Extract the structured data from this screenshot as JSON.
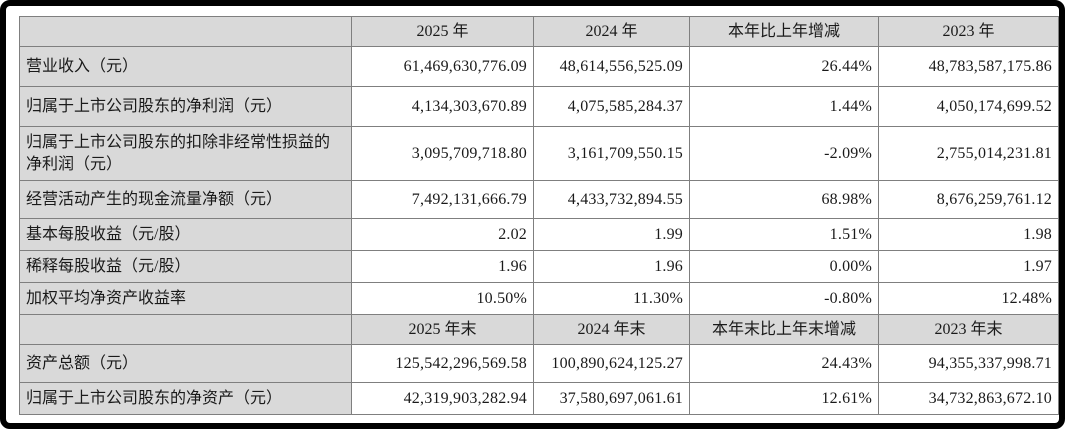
{
  "colors": {
    "frame": "#000000",
    "header_bg": "#d9d9d9",
    "label_bg": "#d9d9d9",
    "cell_bg": "#ffffff",
    "border": "#7f7f7f",
    "text": "#1a1a1a"
  },
  "table": {
    "header_row_1": {
      "col_2025": "2025 年",
      "col_2024": "2024 年",
      "col_change": "本年比上年增减",
      "col_2023": "2023 年"
    },
    "header_row_2": {
      "col_2025": "2025 年末",
      "col_2024": "2024 年末",
      "col_change": "本年末比上年末增减",
      "col_2023": "2023 年末"
    },
    "rows": [
      {
        "label": "营业收入（元）",
        "v2025": "61,469,630,776.09",
        "v2024": "48,614,556,525.09",
        "change": "26.44%",
        "v2023": "48,783,587,175.86"
      },
      {
        "label": "归属于上市公司股东的净利润（元）",
        "v2025": "4,134,303,670.89",
        "v2024": "4,075,585,284.37",
        "change": "1.44%",
        "v2023": "4,050,174,699.52"
      },
      {
        "label": "归属于上市公司股东的扣除非经常性损益的净利润（元）",
        "v2025": "3,095,709,718.80",
        "v2024": "3,161,709,550.15",
        "change": "-2.09%",
        "v2023": "2,755,014,231.81"
      },
      {
        "label": "经营活动产生的现金流量净额（元）",
        "v2025": "7,492,131,666.79",
        "v2024": "4,433,732,894.55",
        "change": "68.98%",
        "v2023": "8,676,259,761.12"
      },
      {
        "label": "基本每股收益（元/股）",
        "v2025": "2.02",
        "v2024": "1.99",
        "change": "1.51%",
        "v2023": "1.98"
      },
      {
        "label": "稀释每股收益（元/股）",
        "v2025": "1.96",
        "v2024": "1.96",
        "change": "0.00%",
        "v2023": "1.97"
      },
      {
        "label": "加权平均净资产收益率",
        "v2025": "10.50%",
        "v2024": "11.30%",
        "change": "-0.80%",
        "v2023": "12.48%"
      }
    ],
    "rows_period_end": [
      {
        "label": "资产总额（元）",
        "v2025": "125,542,296,569.58",
        "v2024": "100,890,624,125.27",
        "change": "24.43%",
        "v2023": "94,355,337,998.71"
      },
      {
        "label": "归属于上市公司股东的净资产（元）",
        "v2025": "42,319,903,282.94",
        "v2024": "37,580,697,061.61",
        "change": "12.61%",
        "v2023": "34,732,863,672.10"
      }
    ]
  }
}
